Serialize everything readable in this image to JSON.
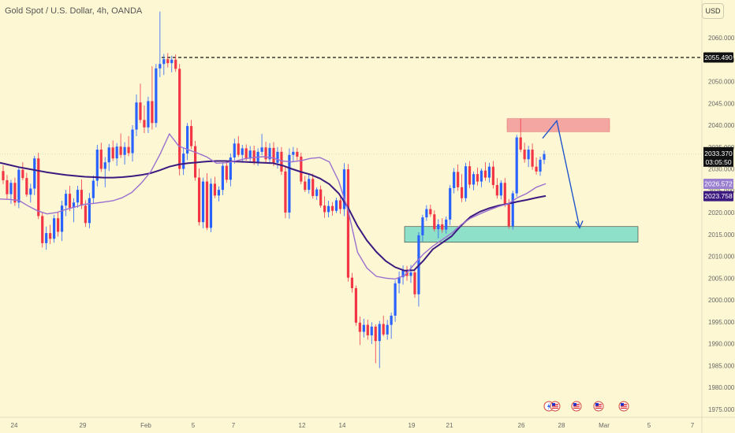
{
  "header": {
    "title": "Gold Spot / U.S. Dollar, 4h, OANDA",
    "currency_button": "USD"
  },
  "colors": {
    "background": "#fdf8d3",
    "bull": "#2962ff",
    "bear": "#f23645",
    "ma_slow": "#3c1a80",
    "ma_fast": "#9a6fd0",
    "resistance_zone": "#f4a7a2",
    "support_zone": "#8fe0c8",
    "arrow": "#2255cc"
  },
  "price_tags": {
    "level_dashed": "2055.490",
    "current_price": "2033.370",
    "countdown": "03:05:50",
    "ma_fast_value": "2026.572",
    "ma_slow_value": "2023.758"
  },
  "event_icons": [
    "lightning-icon",
    "us-flag-icon",
    "us-flag-icon",
    "us-flag-icon",
    "us-flag-icon"
  ],
  "chart_data": {
    "type": "candlestick",
    "title": "Gold Spot / U.S. Dollar, 4h, OANDA",
    "ylim": [
      1973,
      2068
    ],
    "y_ticks": [
      "2060.000",
      "2055.000",
      "2050.000",
      "2045.000",
      "2040.000",
      "2035.000",
      "2030.000",
      "2025.000",
      "2020.000",
      "2015.000",
      "2010.000",
      "2005.000",
      "2000.000",
      "1995.000",
      "1990.000",
      "1985.000",
      "1980.000",
      "1975.000"
    ],
    "x_ticks": [
      "24",
      "29",
      "Feb",
      "5",
      "7",
      "12",
      "14",
      "19",
      "21",
      "26",
      "28",
      "Mar",
      "5",
      "7"
    ],
    "horizontal_level": 2055.49,
    "resistance_zone": {
      "from": 2038.5,
      "to": 2041.5
    },
    "support_zone": {
      "from": 2013.2,
      "to": 2016.8
    },
    "projection_path": [
      2037.0,
      2041.0,
      2016.5
    ],
    "candles": [
      [
        2029.5,
        2030.8,
        2026.5,
        2027.4
      ],
      [
        2027.4,
        2028.6,
        2023.0,
        2024.2
      ],
      [
        2024.2,
        2027.5,
        2022.0,
        2026.8
      ],
      [
        2026.8,
        2028.0,
        2021.5,
        2022.3
      ],
      [
        2022.3,
        2030.5,
        2021.0,
        2029.8
      ],
      [
        2029.8,
        2031.5,
        2027.4,
        2027.9
      ],
      [
        2027.9,
        2029.1,
        2023.6,
        2024.1
      ],
      [
        2024.1,
        2026.6,
        2022.3,
        2025.5
      ],
      [
        2025.5,
        2033.0,
        2024.0,
        2032.4
      ],
      [
        2032.4,
        2033.7,
        2018.5,
        2019.2
      ],
      [
        2019.2,
        2020.0,
        2012.0,
        2013.0
      ],
      [
        2013.0,
        2016.8,
        2011.5,
        2015.3
      ],
      [
        2015.3,
        2017.2,
        2012.8,
        2014.0
      ],
      [
        2014.0,
        2019.5,
        2013.1,
        2018.7
      ],
      [
        2018.7,
        2020.1,
        2014.5,
        2015.6
      ],
      [
        2015.6,
        2022.7,
        2013.5,
        2021.6
      ],
      [
        2021.6,
        2025.2,
        2019.2,
        2024.3
      ],
      [
        2024.3,
        2026.1,
        2020.3,
        2021.1
      ],
      [
        2021.1,
        2023.3,
        2017.8,
        2022.3
      ],
      [
        2022.3,
        2026.1,
        2021.1,
        2025.2
      ],
      [
        2025.2,
        2027.6,
        2020.8,
        2021.6
      ],
      [
        2021.6,
        2022.8,
        2016.7,
        2017.6
      ],
      [
        2017.6,
        2024.5,
        2016.4,
        2023.3
      ],
      [
        2023.3,
        2028.5,
        2022.0,
        2027.3
      ],
      [
        2027.3,
        2035.5,
        2026.0,
        2034.4
      ],
      [
        2034.4,
        2036.0,
        2029.3,
        2030.0
      ],
      [
        2030.0,
        2032.7,
        2025.8,
        2031.5
      ],
      [
        2031.5,
        2035.7,
        2029.5,
        2034.9
      ],
      [
        2034.9,
        2036.5,
        2031.8,
        2032.4
      ],
      [
        2032.4,
        2035.9,
        2030.7,
        2035.1
      ],
      [
        2035.1,
        2038.1,
        2032.5,
        2033.2
      ],
      [
        2033.2,
        2036.1,
        2031.0,
        2035.0
      ],
      [
        2035.0,
        2037.5,
        2032.9,
        2033.6
      ],
      [
        2033.6,
        2040.0,
        2031.7,
        2039.0
      ],
      [
        2039.0,
        2047.0,
        2037.5,
        2045.2
      ],
      [
        2045.2,
        2049.5,
        2040.5,
        2041.2
      ],
      [
        2041.2,
        2044.5,
        2038.2,
        2039.5
      ],
      [
        2039.5,
        2046.5,
        2038.2,
        2045.5
      ],
      [
        2045.5,
        2053.5,
        2039.0,
        2040.5
      ],
      [
        2040.5,
        2054.0,
        2039.5,
        2053.0
      ],
      [
        2053.0,
        2066.0,
        2051.0,
        2054.0
      ],
      [
        2054.0,
        2056.3,
        2051.5,
        2055.1
      ],
      [
        2055.1,
        2056.5,
        2053.2,
        2054.2
      ],
      [
        2054.2,
        2055.9,
        2052.1,
        2055.0
      ],
      [
        2055.0,
        2056.2,
        2052.2,
        2052.9
      ],
      [
        2052.9,
        2054.0,
        2028.5,
        2030.0
      ],
      [
        2030.0,
        2034.9,
        2028.6,
        2033.5
      ],
      [
        2033.5,
        2040.5,
        2032.0,
        2039.8
      ],
      [
        2039.8,
        2041.2,
        2034.5,
        2035.2
      ],
      [
        2035.2,
        2036.4,
        2027.3,
        2028.0
      ],
      [
        2028.0,
        2030.1,
        2017.0,
        2017.8
      ],
      [
        2017.8,
        2028.0,
        2016.4,
        2027.1
      ],
      [
        2027.1,
        2029.0,
        2016.0,
        2016.5
      ],
      [
        2016.5,
        2027.8,
        2015.5,
        2026.6
      ],
      [
        2026.6,
        2028.2,
        2023.3,
        2023.9
      ],
      [
        2023.9,
        2026.0,
        2022.6,
        2025.2
      ],
      [
        2025.2,
        2031.5,
        2024.0,
        2030.7
      ],
      [
        2030.7,
        2031.8,
        2026.8,
        2027.5
      ],
      [
        2027.5,
        2033.5,
        2026.0,
        2032.6
      ],
      [
        2032.6,
        2036.9,
        2031.2,
        2035.8
      ],
      [
        2035.8,
        2037.5,
        2032.7,
        2033.2
      ],
      [
        2033.2,
        2035.5,
        2031.4,
        2034.7
      ],
      [
        2034.7,
        2035.6,
        2031.9,
        2032.4
      ],
      [
        2032.4,
        2035.2,
        2031.4,
        2034.2
      ],
      [
        2034.2,
        2035.3,
        2030.9,
        2031.6
      ],
      [
        2031.6,
        2034.7,
        2030.7,
        2033.9
      ],
      [
        2033.9,
        2038.0,
        2033.1,
        2034.9
      ],
      [
        2034.9,
        2036.2,
        2031.5,
        2032.2
      ],
      [
        2032.2,
        2035.9,
        2031.1,
        2034.8
      ],
      [
        2034.8,
        2036.1,
        2030.6,
        2031.4
      ],
      [
        2031.4,
        2035.0,
        2030.1,
        2033.9
      ],
      [
        2033.9,
        2035.0,
        2028.6,
        2029.4
      ],
      [
        2029.4,
        2030.4,
        2018.7,
        2020.0
      ],
      [
        2020.0,
        2034.7,
        2018.6,
        2033.2
      ],
      [
        2033.2,
        2035.0,
        2031.5,
        2033.9
      ],
      [
        2033.9,
        2034.8,
        2032.0,
        2032.8
      ],
      [
        2032.8,
        2033.7,
        2026.5,
        2027.1
      ],
      [
        2027.1,
        2028.4,
        2024.7,
        2025.2
      ],
      [
        2025.2,
        2028.7,
        2024.3,
        2027.7
      ],
      [
        2027.7,
        2028.9,
        2023.2,
        2023.8
      ],
      [
        2023.8,
        2025.8,
        2022.9,
        2025.3
      ],
      [
        2025.3,
        2026.2,
        2021.1,
        2021.6
      ],
      [
        2021.6,
        2023.7,
        2018.8,
        2020.1
      ],
      [
        2020.1,
        2022.7,
        2018.9,
        2021.5
      ],
      [
        2021.5,
        2022.4,
        2019.3,
        2020.4
      ],
      [
        2020.4,
        2023.4,
        2019.9,
        2022.8
      ],
      [
        2022.8,
        2023.5,
        2019.7,
        2020.8
      ],
      [
        2020.8,
        2031.3,
        2019.2,
        2029.9
      ],
      [
        2029.9,
        2031.1,
        2004.2,
        2005.1
      ],
      [
        2005.1,
        2006.2,
        2001.7,
        2002.7
      ],
      [
        2002.7,
        2003.3,
        1994.1,
        1994.8
      ],
      [
        1994.8,
        1996.2,
        1989.7,
        1992.7
      ],
      [
        1992.7,
        1995.7,
        1991.4,
        1994.3
      ],
      [
        1994.3,
        1995.5,
        1990.9,
        1991.9
      ],
      [
        1991.9,
        1994.9,
        1989.9,
        1993.9
      ],
      [
        1993.9,
        1994.4,
        1985.5,
        1990.6
      ],
      [
        1990.6,
        1995.2,
        1984.4,
        1994.5
      ],
      [
        1994.5,
        1996.4,
        1991.7,
        1992.1
      ],
      [
        1992.1,
        1995.4,
        1990.9,
        1994.3
      ],
      [
        1994.3,
        1997.1,
        1991.1,
        1996.4
      ],
      [
        1996.4,
        2004.5,
        1995.0,
        2003.8
      ],
      [
        2003.8,
        2006.5,
        2001.5,
        2005.2
      ],
      [
        2005.2,
        2007.9,
        2003.5,
        2006.8
      ],
      [
        2006.8,
        2007.8,
        2004.4,
        2005.5
      ],
      [
        2005.5,
        2008.0,
        2003.9,
        2006.3
      ],
      [
        2006.3,
        2007.0,
        2000.5,
        2001.3
      ],
      [
        2001.3,
        2015.5,
        1998.5,
        2014.8
      ],
      [
        2014.8,
        2019.5,
        2013.4,
        2018.9
      ],
      [
        2018.9,
        2021.7,
        2018.1,
        2020.8
      ],
      [
        2020.8,
        2021.8,
        2019.0,
        2019.6
      ],
      [
        2019.6,
        2020.5,
        2015.7,
        2016.2
      ],
      [
        2016.2,
        2018.5,
        2014.1,
        2017.3
      ],
      [
        2017.3,
        2018.7,
        2015.4,
        2016.1
      ],
      [
        2016.1,
        2019.1,
        2015.2,
        2018.4
      ],
      [
        2018.4,
        2026.3,
        2017.1,
        2025.6
      ],
      [
        2025.6,
        2030.2,
        2024.4,
        2029.3
      ],
      [
        2029.3,
        2031.0,
        2025.0,
        2025.8
      ],
      [
        2025.8,
        2028.8,
        2022.4,
        2023.3
      ],
      [
        2023.3,
        2031.4,
        2022.5,
        2030.6
      ],
      [
        2030.6,
        2031.8,
        2025.6,
        2026.4
      ],
      [
        2026.4,
        2029.4,
        2025.1,
        2028.8
      ],
      [
        2028.8,
        2030.3,
        2026.2,
        2027.1
      ],
      [
        2027.1,
        2030.1,
        2025.8,
        2029.6
      ],
      [
        2029.6,
        2031.5,
        2027.3,
        2028.0
      ],
      [
        2028.0,
        2031.4,
        2026.9,
        2030.5
      ],
      [
        2030.5,
        2031.8,
        2025.5,
        2026.3
      ],
      [
        2026.3,
        2027.9,
        2023.2,
        2023.9
      ],
      [
        2023.9,
        2027.4,
        2023.0,
        2026.8
      ],
      [
        2026.8,
        2027.9,
        2021.3,
        2021.8
      ],
      [
        2021.8,
        2023.1,
        2016.3,
        2016.9
      ],
      [
        2016.9,
        2025.0,
        2016.1,
        2024.4
      ],
      [
        2024.4,
        2037.8,
        2023.6,
        2037.2
      ],
      [
        2037.2,
        2041.5,
        2033.8,
        2034.4
      ],
      [
        2034.4,
        2036.0,
        2031.4,
        2032.2
      ],
      [
        2032.2,
        2035.3,
        2030.4,
        2034.4
      ],
      [
        2034.4,
        2035.8,
        2029.8,
        2030.5
      ],
      [
        2030.5,
        2032.6,
        2028.7,
        2029.4
      ],
      [
        2029.4,
        2032.8,
        2028.4,
        2032.1
      ],
      [
        2032.1,
        2034.2,
        2031.1,
        2033.4
      ]
    ],
    "ma_slow": [
      2031.4,
      2030.9,
      2030.4,
      2030.0,
      2029.6,
      2029.2,
      2028.9,
      2028.6,
      2028.4,
      2028.2,
      2028.1,
      2028.0,
      2028.0,
      2028.1,
      2028.3,
      2028.6,
      2029.0,
      2029.7,
      2030.5,
      2031.0,
      2031.3,
      2031.5,
      2031.7,
      2031.8,
      2031.8,
      2031.7,
      2031.6,
      2031.5,
      2031.4,
      2031.3,
      2030.8,
      2030.0,
      2029.3,
      2028.7,
      2027.8,
      2026.5,
      2024.4,
      2021.1,
      2016.9,
      2013.6,
      2011.0,
      2008.9,
      2007.5,
      2006.7,
      2006.8,
      2009.0,
      2011.6,
      2013.1,
      2014.6,
      2017.0,
      2019.0,
      2020.2,
      2021.0,
      2021.6,
      2022.0,
      2022.5,
      2022.9,
      2023.4,
      2023.8
    ],
    "ma_fast": [
      2023.1,
      2023.0,
      2022.8,
      2021.5,
      2020.4,
      2019.7,
      2020.0,
      2020.7,
      2021.3,
      2021.9,
      2022.1,
      2022.4,
      2022.7,
      2023.4,
      2024.6,
      2026.7,
      2029.3,
      2033.3,
      2038.0,
      2035.2,
      2034.4,
      2033.6,
      2032.7,
      2031.3,
      2031.4,
      2031.8,
      2032.3,
      2032.6,
      2032.8,
      2032.5,
      2031.8,
      2031.6,
      2031.9,
      2032.4,
      2032.6,
      2031.6,
      2027.2,
      2020.5,
      2010.9,
      2007.3,
      2005.4,
      2005.0,
      2004.8,
      2005.6,
      2008.1,
      2010.5,
      2012.3,
      2013.8,
      2015.3,
      2017.2,
      2018.7,
      2019.7,
      2020.6,
      2021.4,
      2022.0,
      2023.4,
      2024.4,
      2025.8,
      2026.6
    ]
  }
}
